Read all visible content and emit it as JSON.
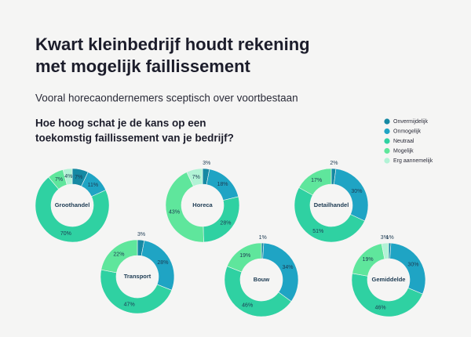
{
  "title": [
    "Kwart kleinbedrijf houdt rekening",
    "met mogelijk faillissement"
  ],
  "subtitle": "Vooral horecaondernemers sceptisch over voortbestaan",
  "question": [
    "Hoe hoog schat je de kans op een",
    "toekomstig faillissement van je bedrijf?"
  ],
  "chart_data": [
    {
      "type": "donut",
      "title": "Groothandel",
      "categories": [
        "Onvermijdelijk",
        "Onmogelijk",
        "Neutraal",
        "Mogelijk",
        "Erg aannemelijk"
      ],
      "colors": [
        "#1589a3",
        "#1fa4c4",
        "#2fd1a2",
        "#5fe69c",
        "#b2f3d6"
      ],
      "values": [
        7,
        11,
        70,
        7,
        4
      ],
      "value_labels": [
        "7%",
        "11%",
        "70%",
        "7%",
        "4%"
      ]
    },
    {
      "type": "donut",
      "title": "Horeca",
      "categories": [
        "Onvermijdelijk",
        "Onmogelijk",
        "Neutraal",
        "Mogelijk",
        "Erg aannemelijk"
      ],
      "colors": [
        "#1589a3",
        "#1fa4c4",
        "#2fd1a2",
        "#5fe69c",
        "#b2f3d6"
      ],
      "values": [
        3,
        18,
        28,
        43,
        7
      ],
      "value_labels": [
        "3%",
        "18%",
        "28%",
        "43%",
        "7%"
      ]
    },
    {
      "type": "donut",
      "title": "Detailhandel",
      "categories": [
        "Onvermijdelijk",
        "Onmogelijk",
        "Neutraal",
        "Mogelijk",
        "Erg aannemelijk"
      ],
      "colors": [
        "#1589a3",
        "#1fa4c4",
        "#2fd1a2",
        "#5fe69c",
        "#b2f3d6"
      ],
      "values": [
        2,
        30,
        51,
        17,
        null
      ],
      "value_labels": [
        "2%",
        "30%",
        "51%",
        "17%",
        null
      ]
    },
    {
      "type": "donut",
      "title": "Transport",
      "categories": [
        "Onvermijdelijk",
        "Onmogelijk",
        "Neutraal",
        "Mogelijk",
        "Erg aannemelijk"
      ],
      "colors": [
        "#1589a3",
        "#1fa4c4",
        "#2fd1a2",
        "#5fe69c",
        "#b2f3d6"
      ],
      "values": [
        3,
        28,
        47,
        22,
        null
      ],
      "value_labels": [
        "3%",
        "28%",
        "47%",
        "22%",
        null
      ]
    },
    {
      "type": "donut",
      "title": "Bouw",
      "categories": [
        "Onvermijdelijk",
        "Onmogelijk",
        "Neutraal",
        "Mogelijk",
        "Erg aannemelijk"
      ],
      "colors": [
        "#1589a3",
        "#1fa4c4",
        "#2fd1a2",
        "#5fe69c",
        "#b2f3d6"
      ],
      "values": [
        1,
        34,
        46,
        19,
        null
      ],
      "value_labels": [
        "1%",
        "34%",
        "46%",
        "19%",
        null
      ]
    },
    {
      "type": "donut",
      "title": "Gemiddelde",
      "categories": [
        "Onvermijdelijk",
        "Onmogelijk",
        "Neutraal",
        "Mogelijk",
        "Erg aannemelijk"
      ],
      "colors": [
        "#1589a3",
        "#1fa4c4",
        "#2fd1a2",
        "#5fe69c",
        "#b2f3d6"
      ],
      "values": [
        1,
        30,
        46,
        19,
        3
      ],
      "value_labels": [
        "1%",
        "30%",
        "46%",
        "19%",
        "3%"
      ]
    }
  ]
}
